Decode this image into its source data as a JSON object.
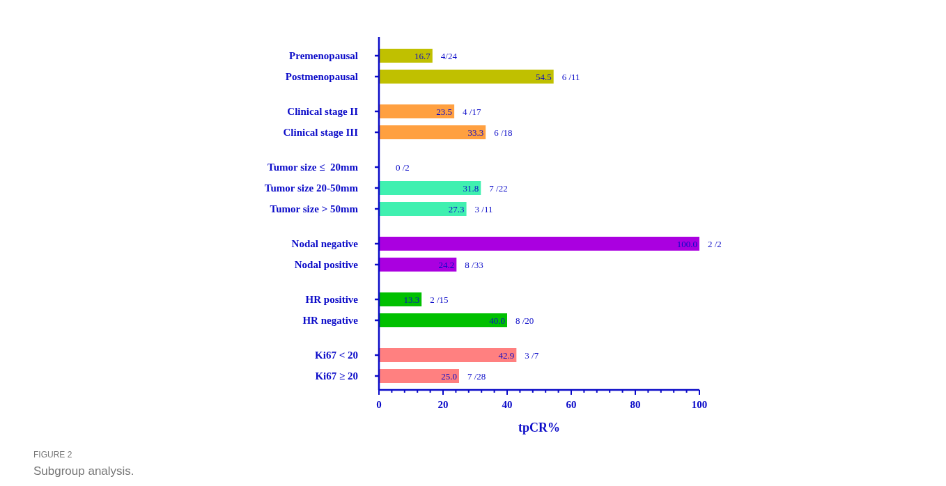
{
  "chart_data": {
    "type": "bar",
    "orientation": "horizontal",
    "title": "FIGURE 2",
    "subtitle": "Subgroup analysis.",
    "xlabel": "tpCR%",
    "categories": [
      "Premenopausal",
      "Postmenopausal",
      null,
      "Clinical stage II",
      "Clinical stage III",
      null,
      "Tumor size ≤  20mm",
      "Tumor size 20-50mm",
      "Tumor size > 50mm",
      null,
      "Nodal negative",
      "Nodal positive",
      null,
      "HR positive",
      "HR negative",
      null,
      "Ki67 < 20",
      "Ki67 ≥ 20"
    ],
    "values": [
      16.7,
      54.5,
      null,
      23.5,
      33.3,
      null,
      0,
      31.8,
      27.3,
      null,
      100.0,
      24.2,
      null,
      13.3,
      40.0,
      null,
      42.9,
      25.0
    ],
    "value_labels": [
      "16.7",
      "54.5",
      null,
      "23.5",
      "33.3",
      null,
      null,
      "31.8",
      "27.3",
      null,
      "100.0",
      "24.2",
      null,
      "13.3",
      "40.0",
      null,
      "42.9",
      "25.0"
    ],
    "colors": [
      "#c0c000",
      "#c0c000",
      null,
      "#ffa040",
      "#ffa040",
      null,
      "#40f0b0",
      "#40f0b0",
      "#40f0b0",
      null,
      "#aa00e0",
      "#aa00e0",
      null,
      "#00c000",
      "#00c000",
      null,
      "#ff8080",
      "#ff8080"
    ],
    "xlim": [
      0,
      100
    ],
    "xticks": [
      0,
      {
        "value": 4,
        "label": null
      },
      {
        "value": 8,
        "label": null
      },
      {
        "value": 12,
        "label": null
      },
      {
        "value": 16,
        "label": null
      },
      20,
      {
        "value": 24,
        "label": null
      },
      {
        "value": 28,
        "label": null
      },
      {
        "value": 32,
        "label": null
      },
      {
        "value": 36,
        "label": null
      },
      40,
      {
        "value": 44,
        "label": null
      },
      {
        "value": 48,
        "label": null
      },
      {
        "value": 52,
        "label": null
      },
      {
        "value": 56,
        "label": null
      },
      60,
      {
        "value": 64,
        "label": null
      },
      {
        "value": 68,
        "label": null
      },
      {
        "value": 72,
        "label": null
      },
      {
        "value": 76,
        "label": null
      },
      80,
      {
        "value": 84,
        "label": null
      },
      {
        "value": 88,
        "label": null
      },
      {
        "value": 92,
        "label": null
      },
      {
        "value": 96,
        "label": null
      },
      100
    ],
    "grid": false,
    "annotations": [
      {
        "text": "4/24",
        "x": 16.7,
        "y": "Premenopausal"
      },
      {
        "text": "6 /11",
        "x": 54.5,
        "y": "Postmenopausal"
      },
      {
        "text": "4 /17",
        "x": 23.5,
        "y": "Clinical stage II"
      },
      {
        "text": "6 /18",
        "x": 33.3,
        "y": "Clinical stage III"
      },
      {
        "text": "0 /2",
        "x": 0,
        "y": "Tumor size ≤  20mm"
      },
      {
        "text": "7 /22",
        "x": 31.8,
        "y": "Tumor size 20-50mm"
      },
      {
        "text": "3 /11",
        "x": 27.3,
        "y": "Tumor size > 50mm"
      },
      {
        "text": "2 /2",
        "x": 100.0,
        "y": "Nodal negative"
      },
      {
        "text": "8 /33",
        "x": 24.2,
        "y": "Nodal positive"
      },
      {
        "text": "2 /15",
        "x": 13.3,
        "y": "HR positive"
      },
      {
        "text": "8 /20",
        "x": 40.0,
        "y": "HR negative"
      },
      {
        "text": "3 /7",
        "x": 42.9,
        "y": "Ki67 < 20"
      },
      {
        "text": "7 /28",
        "x": 25.0,
        "y": "Ki67 ≥ 20"
      }
    ]
  }
}
